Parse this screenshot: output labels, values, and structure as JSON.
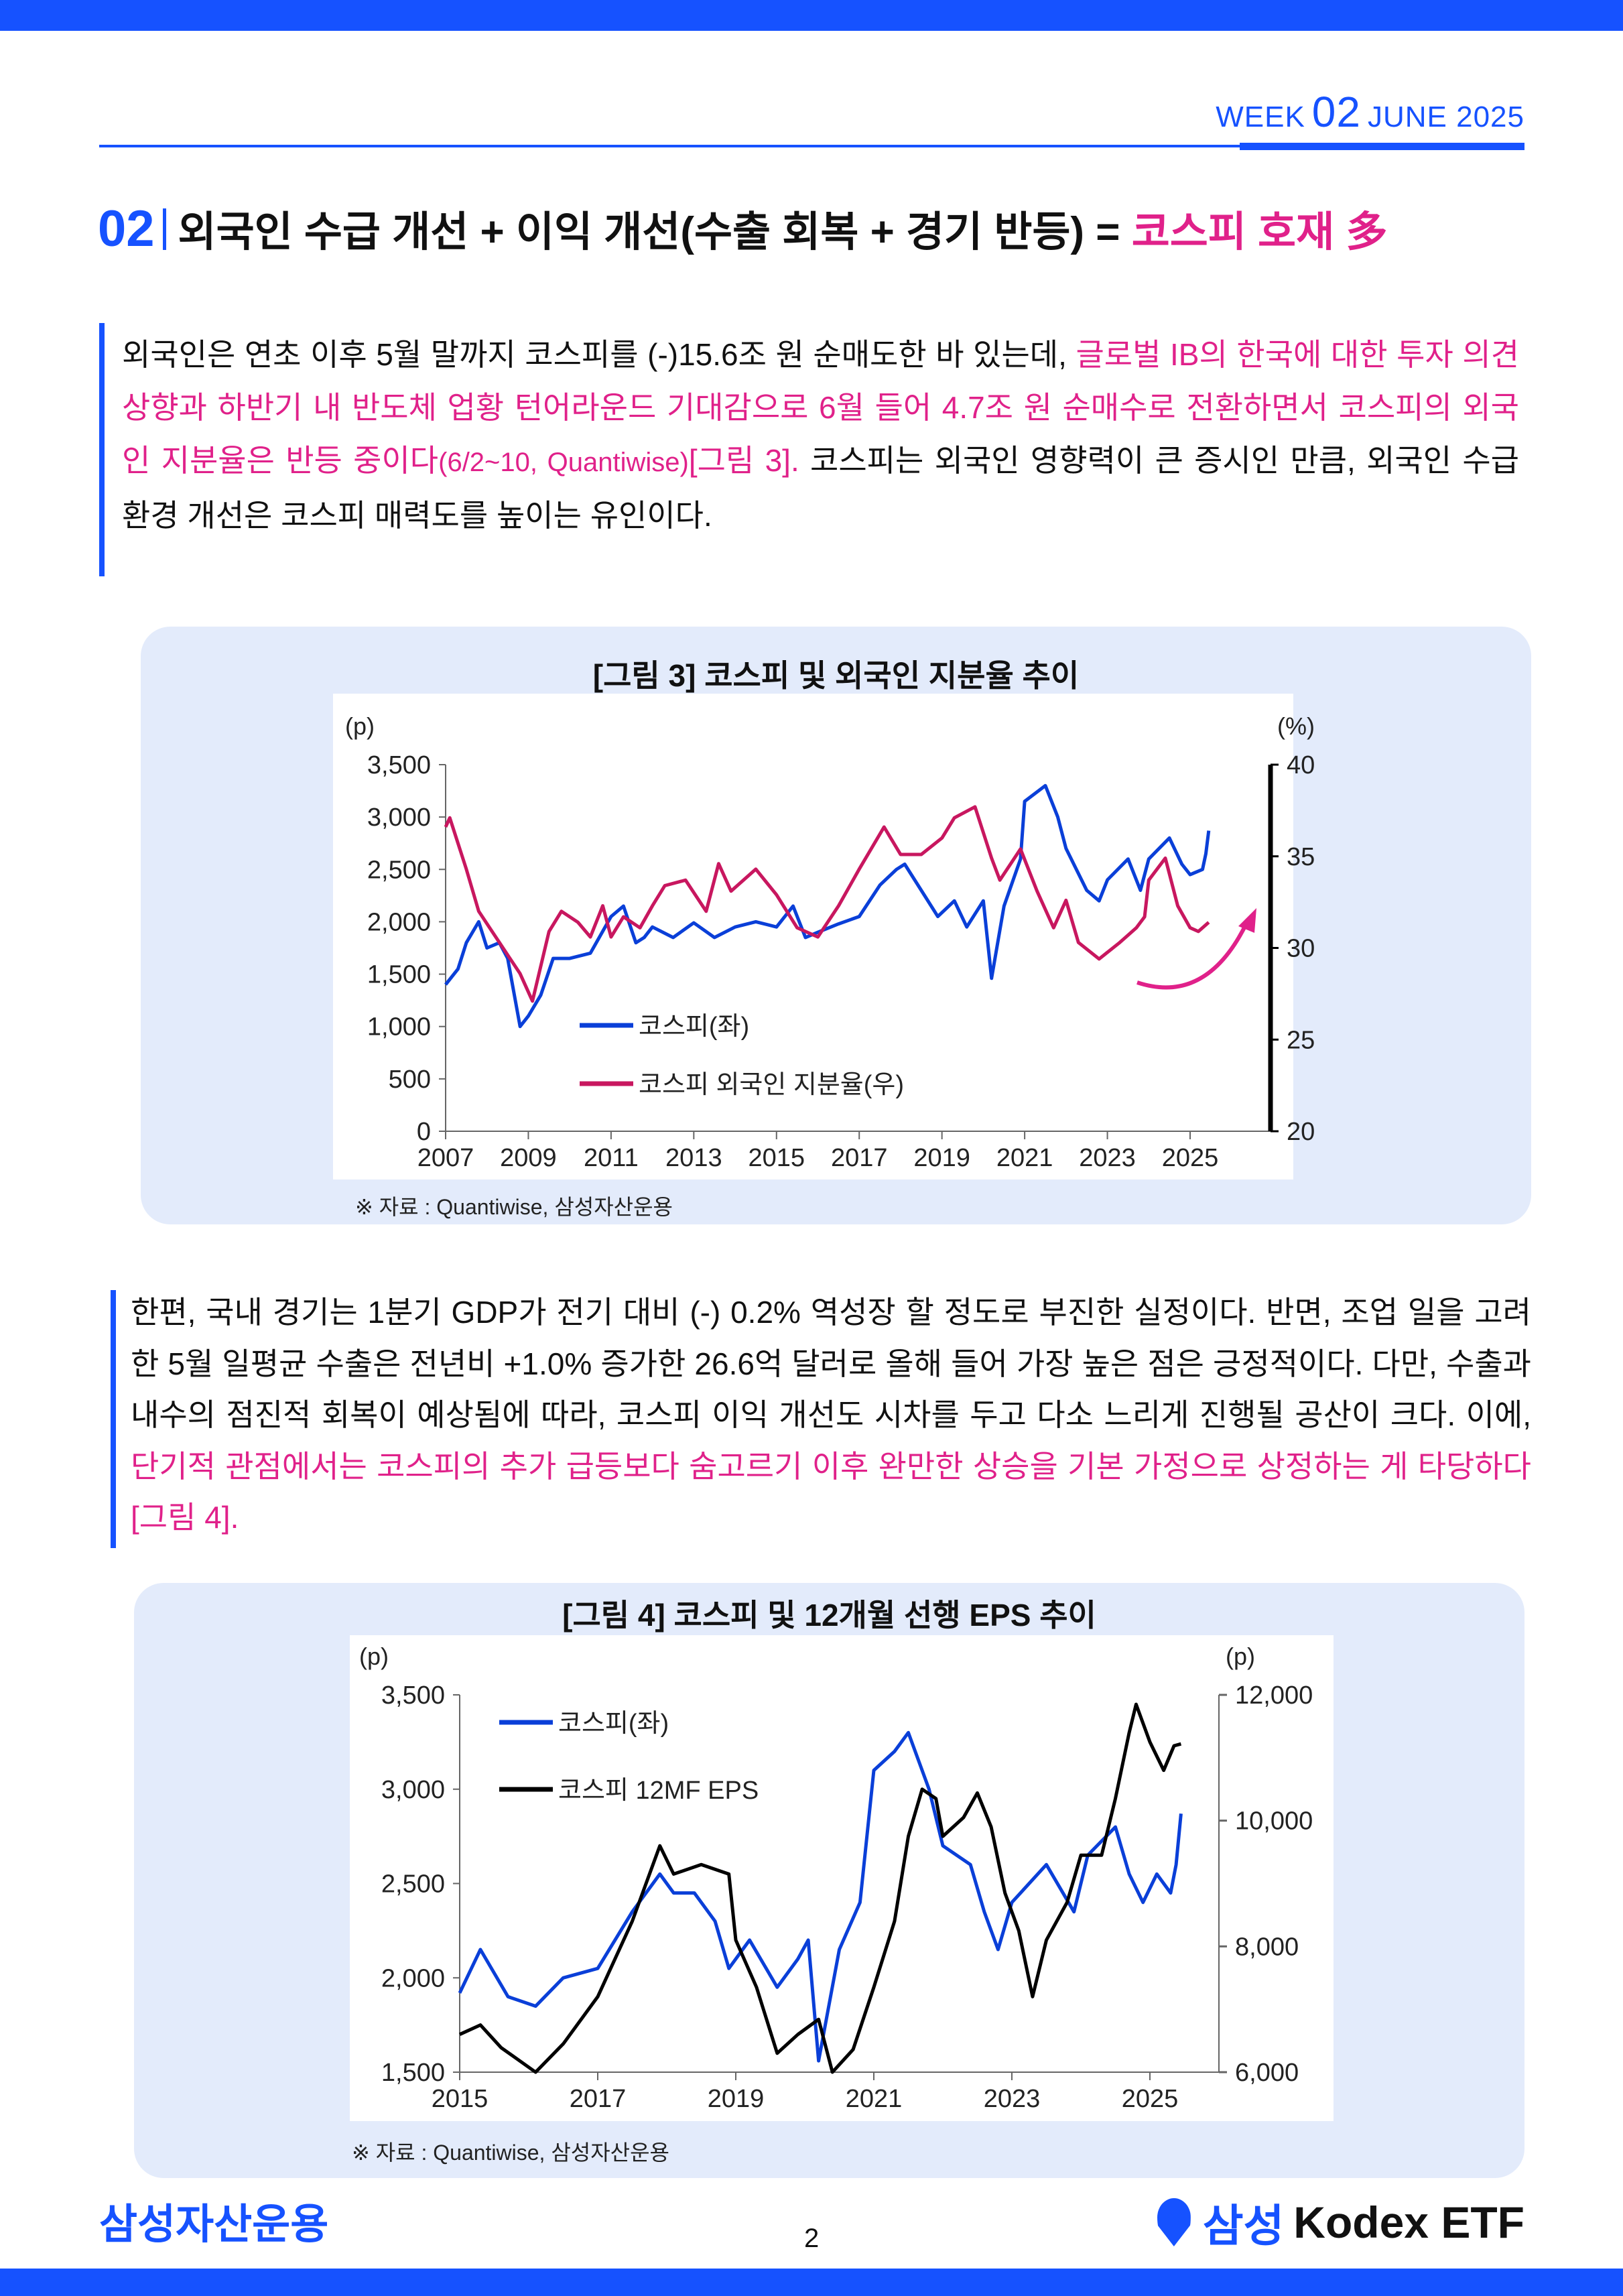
{
  "header": {
    "week_prefix": "WEEK",
    "week_num": "02",
    "month_year": "JUNE 2025"
  },
  "section": {
    "number": "02",
    "title": "외국인 수급 개선 + 이익 개선(수출 회복 + 경기 반등) = ",
    "title_highlight": "코스피 호재 多"
  },
  "para1": {
    "t1": "외국인은 연초 이후 5월 말까지 코스피를 (-)15.6조 원 순매도한 바 있는데, ",
    "h1": "글로벌 IB의 한국에 대한 투자 의견 상향과 하반기 내 반도체 업황 턴어라운드 기대감으로 6월 들어 4.7조 원 순매수로 전환하면서 코스피의 외국인 지분율은 반등 중이다",
    "h1_small": "(6/2~10, Quantiwise)",
    "h2": "[그림 3].",
    "t2": " 코스피는 외국인 영향력이 큰 증시인 만큼, 외국인 수급 환경 개선은 코스피 매력도를 높이는 유인이다."
  },
  "para2": {
    "t1": "한편, 국내 경기는 1분기 GDP가 전기 대비 (-) 0.2% 역성장 할 정도로 부진한 실정이다. 반면, 조업 일을 고려한 5월 일평균 수출은 전년비 +1.0% 증가한 26.6억 달러로 올해 들어 가장 높은 점은 긍정적이다. 다만, 수출과 내수의 점진적 회복이 예상됨에 따라, 코스피 이익 개선도 시차를 두고 다소 느리게 진행될 공산이 크다. 이에, ",
    "h1": "단기적 관점에서는 코스피의 추가 급등보다 숨고르기 이후 완만한 상승을 기본 가정으로 상정하는 게 타당하다[그림 4]."
  },
  "colors": {
    "brand_blue": "#1652ff",
    "highlight_pink": "#e0218a",
    "kospi_line": "#0a3fd8",
    "foreign_share_line": "#c8175f",
    "eps_line": "#000000",
    "box_bg": "#e3ebfb"
  },
  "chart_data": [
    {
      "type": "line",
      "title": "[그림 3] 코스피 및 외국인 지분율 추이",
      "source": "※ 자료 : Quantiwise, 삼성자산운용",
      "ylabel_left": "(p)",
      "ylabel_right": "(%)",
      "ylim_left": [
        0,
        3500
      ],
      "ylim_right": [
        20,
        40
      ],
      "yticks_left": [
        "0",
        "500",
        "1,000",
        "1,500",
        "2,000",
        "2,500",
        "3,000",
        "3,500"
      ],
      "yticks_right": [
        "20",
        "25",
        "30",
        "35",
        "40"
      ],
      "xticks": [
        "2007",
        "2009",
        "2011",
        "2013",
        "2015",
        "2017",
        "2019",
        "2021",
        "2023",
        "2025"
      ],
      "xlim": [
        2007,
        2026
      ],
      "legend_placement": "center-left",
      "annotation": "rising arrow",
      "series": [
        {
          "name": "코스피(좌)",
          "axis": "left",
          "color": "#0a3fd8",
          "x": [
            2007.0,
            2007.3,
            2007.5,
            2007.8,
            2008.0,
            2008.3,
            2008.5,
            2008.8,
            2009.0,
            2009.3,
            2009.6,
            2010.0,
            2010.5,
            2011.0,
            2011.3,
            2011.6,
            2011.8,
            2012.0,
            2012.5,
            2013.0,
            2013.5,
            2014.0,
            2014.5,
            2015.0,
            2015.4,
            2015.7,
            2016.0,
            2016.5,
            2017.0,
            2017.5,
            2017.9,
            2018.1,
            2018.5,
            2018.9,
            2019.3,
            2019.6,
            2020.0,
            2020.2,
            2020.5,
            2020.9,
            2021.0,
            2021.5,
            2021.8,
            2022.0,
            2022.5,
            2022.8,
            2023.0,
            2023.5,
            2023.8,
            2024.0,
            2024.5,
            2024.8,
            2025.0,
            2025.3,
            2025.38,
            2025.45
          ],
          "y": [
            1400,
            1550,
            1800,
            2000,
            1750,
            1800,
            1650,
            1000,
            1100,
            1300,
            1650,
            1650,
            1700,
            2050,
            2150,
            1800,
            1850,
            1950,
            1850,
            1990,
            1850,
            1950,
            2000,
            1950,
            2150,
            1850,
            1900,
            1980,
            2050,
            2350,
            2500,
            2550,
            2300,
            2050,
            2200,
            1950,
            2200,
            1460,
            2150,
            2600,
            3150,
            3300,
            3000,
            2700,
            2300,
            2200,
            2400,
            2600,
            2300,
            2600,
            2800,
            2550,
            2450,
            2500,
            2650,
            2870
          ]
        },
        {
          "name": "코스피 외국인 지분율(우)",
          "axis": "right",
          "color": "#c8175f",
          "x": [
            2007.0,
            2007.1,
            2007.5,
            2007.8,
            2008.3,
            2008.8,
            2009.1,
            2009.5,
            2009.8,
            2010.2,
            2010.5,
            2010.8,
            2011.0,
            2011.3,
            2011.7,
            2012.0,
            2012.3,
            2012.8,
            2013.3,
            2013.6,
            2013.9,
            2014.5,
            2015.0,
            2015.5,
            2016.0,
            2016.5,
            2017.0,
            2017.6,
            2018.0,
            2018.5,
            2019.0,
            2019.3,
            2019.8,
            2020.2,
            2020.4,
            2020.9,
            2021.3,
            2021.7,
            2022.0,
            2022.3,
            2022.8,
            2023.3,
            2023.7,
            2023.9,
            2024.0,
            2024.4,
            2024.7,
            2025.0,
            2025.2,
            2025.45
          ],
          "y": [
            36.6,
            37.1,
            34.3,
            32.0,
            30.3,
            28.6,
            27.1,
            30.9,
            32.0,
            31.4,
            30.6,
            32.3,
            30.6,
            31.7,
            31.1,
            32.3,
            33.4,
            33.7,
            32.0,
            34.6,
            33.1,
            34.3,
            32.9,
            31.1,
            30.6,
            32.3,
            34.3,
            36.6,
            35.1,
            35.1,
            36.0,
            37.1,
            37.7,
            34.9,
            33.7,
            35.4,
            33.1,
            31.1,
            32.6,
            30.3,
            29.4,
            30.3,
            31.1,
            31.7,
            33.7,
            34.9,
            32.3,
            31.1,
            30.9,
            31.4
          ]
        }
      ]
    },
    {
      "type": "line",
      "title": "[그림 4] 코스피 및 12개월 선행 EPS 추이",
      "source": "※ 자료 : Quantiwise, 삼성자산운용",
      "ylabel_left": "(p)",
      "ylabel_right": "(p)",
      "ylim_left": [
        1500,
        3500
      ],
      "ylim_right": [
        6000,
        12000
      ],
      "yticks_left": [
        "1,500",
        "2,000",
        "2,500",
        "3,000",
        "3,500"
      ],
      "yticks_right": [
        "6,000",
        "8,000",
        "10,000",
        "12,000"
      ],
      "xticks": [
        "2015",
        "2017",
        "2019",
        "2021",
        "2023",
        "2025"
      ],
      "xlim": [
        2015,
        2026
      ],
      "legend_placement": "top-left",
      "series": [
        {
          "name": "코스피(좌)",
          "axis": "left",
          "color": "#0a3fd8",
          "x": [
            2015.0,
            2015.3,
            2015.7,
            2016.1,
            2016.5,
            2017.0,
            2017.5,
            2017.9,
            2018.1,
            2018.4,
            2018.7,
            2018.9,
            2019.2,
            2019.6,
            2019.9,
            2020.05,
            2020.2,
            2020.5,
            2020.8,
            2021.0,
            2021.3,
            2021.5,
            2021.8,
            2022.0,
            2022.4,
            2022.6,
            2022.8,
            2023.0,
            2023.5,
            2023.9,
            2024.1,
            2024.5,
            2024.7,
            2024.9,
            2025.1,
            2025.3,
            2025.38,
            2025.45
          ],
          "y": [
            1920,
            2150,
            1900,
            1850,
            2000,
            2050,
            2350,
            2550,
            2450,
            2450,
            2300,
            2050,
            2200,
            1950,
            2100,
            2200,
            1560,
            2150,
            2400,
            3100,
            3200,
            3300,
            3000,
            2700,
            2600,
            2350,
            2150,
            2400,
            2600,
            2350,
            2650,
            2800,
            2550,
            2400,
            2550,
            2450,
            2600,
            2870
          ]
        },
        {
          "name": "코스피 12MF EPS",
          "axis": "right",
          "color": "#000000",
          "x": [
            2015.0,
            2015.3,
            2015.6,
            2016.1,
            2016.5,
            2017.0,
            2017.5,
            2017.9,
            2018.1,
            2018.5,
            2018.9,
            2019.0,
            2019.3,
            2019.6,
            2019.9,
            2020.2,
            2020.4,
            2020.7,
            2021.0,
            2021.3,
            2021.5,
            2021.7,
            2021.9,
            2022.0,
            2022.3,
            2022.5,
            2022.7,
            2022.9,
            2023.1,
            2023.3,
            2023.5,
            2023.8,
            2024.0,
            2024.3,
            2024.5,
            2024.7,
            2024.8,
            2025.0,
            2025.2,
            2025.35,
            2025.45
          ],
          "y": [
            6600,
            6750,
            6390,
            6000,
            6450,
            7200,
            8400,
            9600,
            9150,
            9300,
            9150,
            8100,
            7350,
            6300,
            6600,
            6840,
            6000,
            6360,
            7350,
            8400,
            9750,
            10500,
            10350,
            9750,
            10050,
            10440,
            9900,
            8850,
            8250,
            7200,
            8100,
            8700,
            9450,
            9450,
            10350,
            11400,
            11850,
            11250,
            10800,
            11190,
            11220
          ]
        }
      ]
    }
  ],
  "footer": {
    "company_logo": "삼성자산운용",
    "page_number": "2",
    "brand_logo_ko": "삼성",
    "brand_logo_en": "Kodex ETF"
  }
}
